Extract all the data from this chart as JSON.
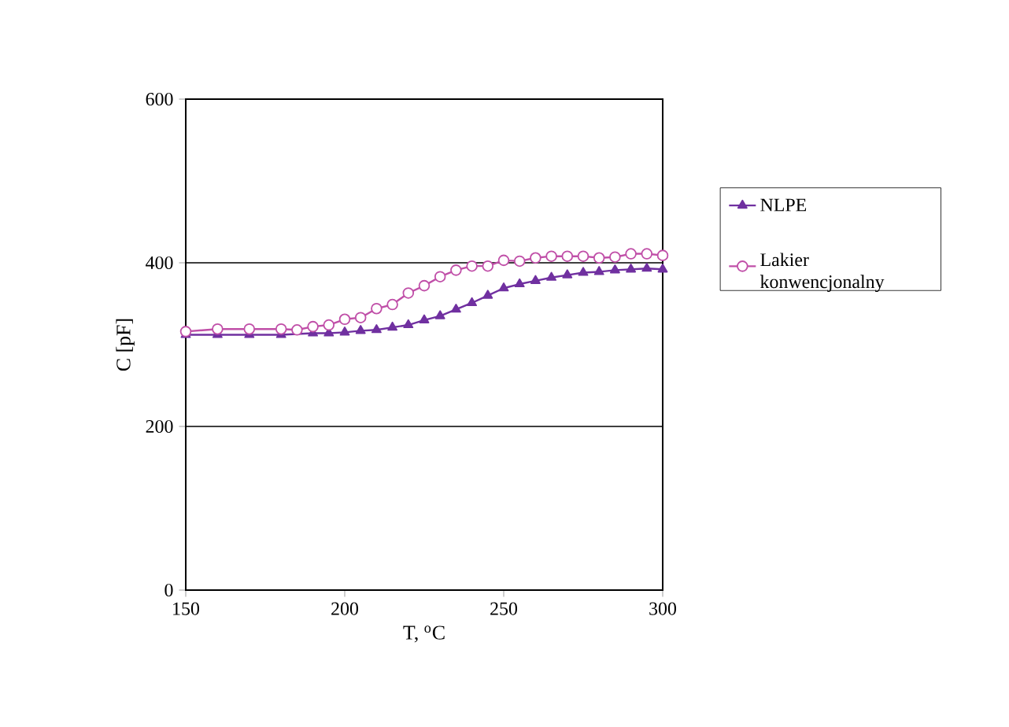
{
  "chart_data": {
    "type": "line",
    "xlabel": "T, $^{o}$C",
    "ylabel": "C [pF]",
    "xlim": [
      150,
      300
    ],
    "ylim": [
      0,
      600
    ],
    "xticks": [
      150,
      200,
      250,
      300
    ],
    "yticks": [
      0,
      200,
      400,
      600
    ],
    "grid": "y",
    "legend": "right",
    "series": [
      {
        "name": "NLPE",
        "color": "#7030a0",
        "marker": "triangle",
        "x": [
          150,
          160,
          170,
          180,
          190,
          195,
          200,
          205,
          210,
          215,
          220,
          225,
          230,
          235,
          240,
          245,
          250,
          255,
          260,
          265,
          270,
          275,
          280,
          285,
          290,
          295,
          300
        ],
        "values": [
          312,
          312,
          312,
          312,
          314,
          314,
          315,
          317,
          318,
          321,
          324,
          330,
          335,
          343,
          351,
          360,
          369,
          374,
          378,
          382,
          385,
          388,
          389,
          391,
          392,
          393,
          392
        ]
      },
      {
        "name": "Lakier konwencjonalny",
        "color": "#c04fa8",
        "marker": "circle",
        "x": [
          150,
          160,
          170,
          180,
          185,
          190,
          195,
          200,
          205,
          210,
          215,
          220,
          225,
          230,
          235,
          240,
          245,
          250,
          255,
          260,
          265,
          270,
          275,
          280,
          285,
          290,
          295,
          300
        ],
        "values": [
          316,
          319,
          319,
          319,
          318,
          322,
          324,
          331,
          333,
          344,
          349,
          363,
          372,
          383,
          391,
          396,
          396,
          403,
          402,
          406,
          408,
          408,
          408,
          406,
          407,
          411,
          411,
          409
        ]
      }
    ]
  }
}
